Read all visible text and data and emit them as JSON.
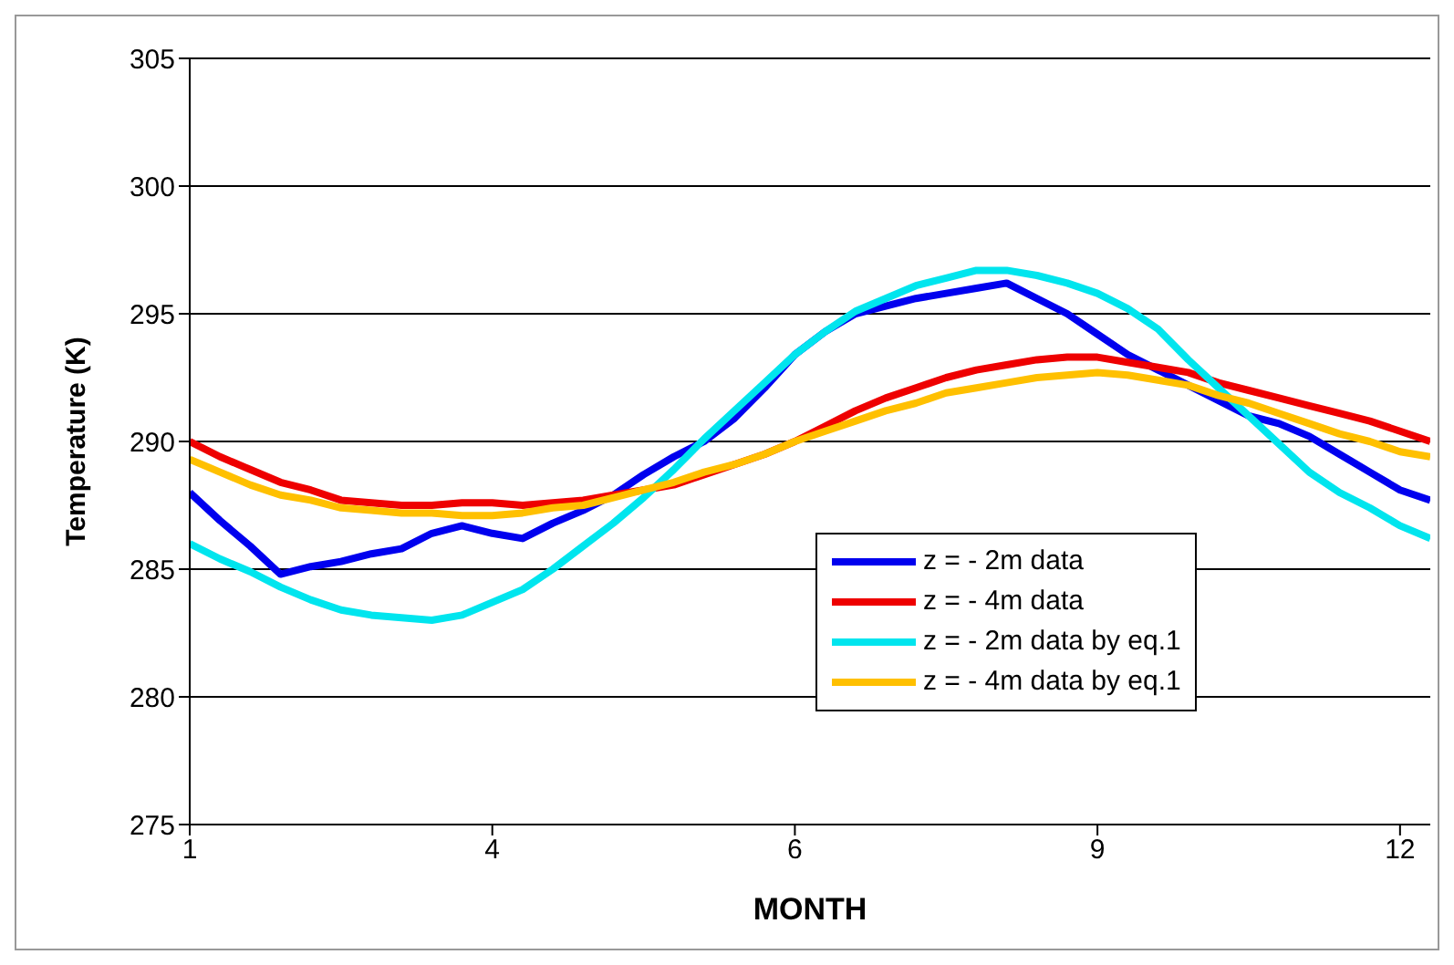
{
  "chart_data": {
    "type": "line",
    "xlabel": "MONTH",
    "ylabel": "Temperature (K)",
    "categories": [
      "1",
      null,
      null,
      null,
      null,
      null,
      null,
      null,
      null,
      null,
      "4",
      null,
      null,
      null,
      null,
      null,
      null,
      null,
      null,
      null,
      "6",
      null,
      null,
      null,
      null,
      null,
      null,
      null,
      null,
      null,
      "9",
      null,
      null,
      null,
      null,
      null,
      null,
      null,
      null,
      null,
      "12",
      null
    ],
    "ylim": [
      275,
      305
    ],
    "yticks": [
      275,
      280,
      285,
      290,
      295,
      300,
      305
    ],
    "grid": "y",
    "legend": "bottom right",
    "marker": "none",
    "line_style": "solid",
    "series": [
      {
        "name": "z = - 2m data",
        "color": "#0000ee",
        "values": [
          288,
          286.9,
          285.9,
          284.8,
          285.1,
          285.3,
          285.6,
          285.8,
          286.4,
          286.7,
          286.4,
          286.2,
          286.8,
          287.3,
          287.9,
          288.7,
          289.4,
          290.0,
          290.9,
          292.1,
          293.4,
          294.3,
          295.0,
          295.3,
          295.6,
          295.8,
          296.0,
          296.2,
          295.6,
          295.0,
          294.2,
          293.4,
          292.8,
          292.2,
          291.6,
          291.0,
          290.7,
          290.2,
          289.5,
          288.8,
          288.1,
          287.7
        ]
      },
      {
        "name": "z = - 4m data",
        "color": "#ee0000",
        "values": [
          290,
          289.4,
          288.9,
          288.4,
          288.1,
          287.7,
          287.6,
          287.5,
          287.5,
          287.6,
          287.6,
          287.5,
          287.6,
          287.7,
          287.9,
          288.1,
          288.3,
          288.7,
          289.1,
          289.5,
          290.0,
          290.6,
          291.2,
          291.7,
          292.1,
          292.5,
          292.8,
          293.0,
          293.2,
          293.3,
          293.3,
          293.1,
          292.9,
          292.7,
          292.3,
          292.0,
          291.7,
          291.4,
          291.1,
          290.8,
          290.4,
          290.0
        ]
      },
      {
        "name": "z = - 2m data by eq.1",
        "color": "#00e5ee",
        "values": [
          286,
          285.4,
          284.9,
          284.3,
          283.8,
          283.4,
          283.2,
          283.1,
          283.0,
          283.2,
          283.7,
          284.2,
          285.0,
          285.9,
          286.8,
          287.8,
          288.9,
          290.1,
          291.2,
          292.3,
          293.4,
          294.3,
          295.1,
          295.6,
          296.1,
          296.4,
          296.7,
          296.7,
          296.5,
          296.2,
          295.8,
          295.2,
          294.4,
          293.2,
          292.1,
          291.0,
          289.9,
          288.8,
          288.0,
          287.4,
          286.7,
          286.2
        ]
      },
      {
        "name": "z = - 4m data by eq.1",
        "color": "#ffc000",
        "values": [
          289.3,
          288.8,
          288.3,
          287.9,
          287.7,
          287.4,
          287.3,
          287.2,
          287.2,
          287.1,
          287.1,
          287.2,
          287.4,
          287.5,
          287.8,
          288.1,
          288.4,
          288.8,
          289.1,
          289.5,
          290.0,
          290.4,
          290.8,
          291.2,
          291.5,
          291.9,
          292.1,
          292.3,
          292.5,
          292.6,
          292.7,
          292.6,
          292.4,
          292.2,
          291.8,
          291.5,
          291.1,
          290.7,
          290.3,
          290.0,
          289.6,
          289.4
        ]
      }
    ]
  }
}
